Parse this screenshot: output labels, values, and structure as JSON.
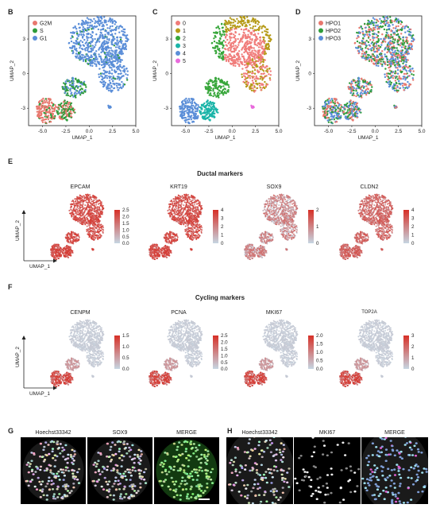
{
  "panel_letters": [
    "B",
    "C",
    "D",
    "E",
    "F",
    "G",
    "H"
  ],
  "umap_axis": {
    "xlabel": "UMAP_1",
    "ylabel": "UMAP_2",
    "xticks": [
      "-5.0",
      "-2.5",
      "0.0",
      "2.5",
      "5.0"
    ],
    "yticks": [
      "3",
      "0",
      "-3"
    ]
  },
  "section_E": {
    "title": "Ductal markers"
  },
  "section_F": {
    "title": "Cycling markers"
  },
  "chart_data": [
    {
      "panel": "B",
      "type": "scatter",
      "legend": [
        {
          "name": "G2M",
          "color": "#e8786e"
        },
        {
          "name": "S",
          "color": "#2e9c3a"
        },
        {
          "name": "G1",
          "color": "#5b8ed8"
        }
      ],
      "xlim": [
        -6.5,
        5
      ],
      "ylim": [
        -4.5,
        5
      ]
    },
    {
      "panel": "C",
      "type": "scatter",
      "legend": [
        {
          "name": "0",
          "color": "#f07c7a"
        },
        {
          "name": "1",
          "color": "#b59a16"
        },
        {
          "name": "2",
          "color": "#37a63a"
        },
        {
          "name": "3",
          "color": "#1bb4a8"
        },
        {
          "name": "4",
          "color": "#5b8ed8"
        },
        {
          "name": "5",
          "color": "#e86adc"
        }
      ],
      "xlim": [
        -6.5,
        5
      ],
      "ylim": [
        -4.5,
        5
      ]
    },
    {
      "panel": "D",
      "type": "scatter",
      "legend": [
        {
          "name": "HPO1",
          "color": "#e8786e"
        },
        {
          "name": "HPO2",
          "color": "#2e9c3a"
        },
        {
          "name": "HPO3",
          "color": "#5b8ed8"
        }
      ],
      "xlim": [
        -6.5,
        5
      ],
      "ylim": [
        -4.5,
        5
      ]
    },
    {
      "panel": "E",
      "type": "heatmap",
      "genes": [
        {
          "name": "EPCAM",
          "scale": [
            "2.5",
            "2.0",
            "1.5",
            "1.0",
            "0.5",
            "0.0"
          ]
        },
        {
          "name": "KRT19",
          "scale": [
            "4",
            "3",
            "2",
            "1",
            "0"
          ]
        },
        {
          "name": "SOX9",
          "scale": [
            "2",
            "1",
            "0"
          ]
        },
        {
          "name": "CLDN2",
          "scale": [
            "4",
            "3",
            "2",
            "1",
            "0"
          ]
        }
      ]
    },
    {
      "panel": "F",
      "type": "heatmap",
      "genes": [
        {
          "name": "CENPM",
          "scale": [
            "1.5",
            "1.0",
            "0.5",
            "0.0"
          ]
        },
        {
          "name": "PCNA",
          "scale": [
            "2.5",
            "2.0",
            "1.5",
            "1.0",
            "0.5",
            "0.0"
          ]
        },
        {
          "name": "MKI67",
          "scale": [
            "2.0",
            "1.5",
            "1.0",
            "0.5",
            "0.0"
          ]
        },
        {
          "name": "TOP2A",
          "scale": [
            "3",
            "2",
            "1",
            "0"
          ]
        }
      ]
    }
  ],
  "panel_G": {
    "labels": [
      "Hoechst33342",
      "SOX9",
      "MERGE"
    ]
  },
  "panel_H": {
    "labels": [
      "Hoechst33342",
      "MKI67",
      "MERGE"
    ]
  },
  "colors": {
    "gradient_high": "#d73027",
    "gradient_low": "#c6d6e2",
    "sox9_merge": "#3a9a2a"
  }
}
